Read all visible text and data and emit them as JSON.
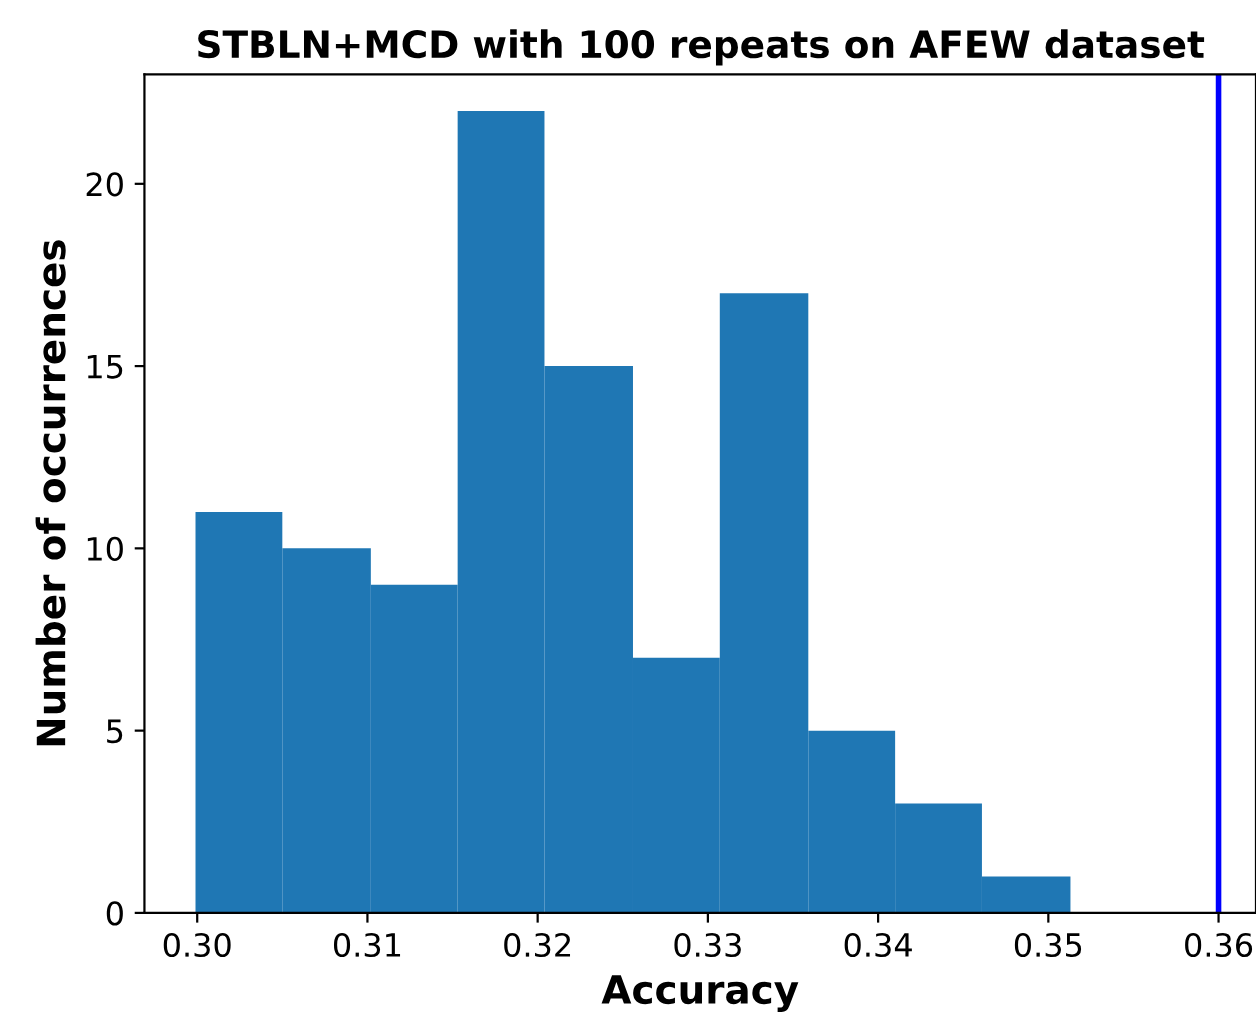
{
  "chart_data": {
    "type": "histogram",
    "title": "STBLN+MCD with 100 repeats on AFEW dataset",
    "xlabel": "Accuracy",
    "ylabel": "Number of occurrences",
    "bins": [
      0.2999,
      0.305,
      0.3102,
      0.3153,
      0.3204,
      0.3256,
      0.3307,
      0.3359,
      0.341,
      0.3461,
      0.3513
    ],
    "values": [
      11,
      10,
      9,
      22,
      15,
      7,
      17,
      5,
      3,
      1
    ],
    "color": "#1f77b4",
    "xlim": [
      0.2969,
      0.3622
    ],
    "ylim": [
      0,
      23
    ],
    "xticks": [
      {
        "value": 0.3,
        "label": "0.30"
      },
      0.31,
      0.32,
      0.33,
      0.34,
      0.35,
      {
        "value": 0.36,
        "label": "0.36"
      }
    ],
    "yticks": [
      0,
      5,
      10,
      15,
      20
    ],
    "ref_lines": [
      {
        "axis": "x",
        "value": 0.36,
        "color": "#0000ff"
      }
    ],
    "grid": false
  }
}
